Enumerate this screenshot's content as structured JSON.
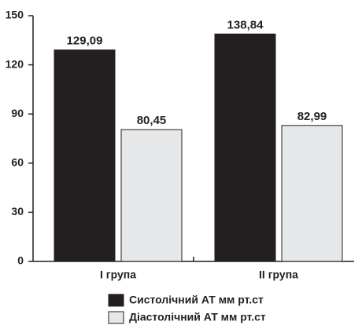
{
  "chart_data": {
    "type": "bar",
    "categories": [
      "I група",
      "II група"
    ],
    "series": [
      {
        "name": "Систолічний АТ мм рт.ст",
        "color": "#231f20",
        "values": [
          129.09,
          138.84
        ],
        "value_labels": [
          "129,09",
          "138,84"
        ]
      },
      {
        "name": "Діастолічний АТ мм рт.ст",
        "color": "#e6e7e8",
        "values": [
          80.45,
          82.99
        ],
        "value_labels": [
          "80,45",
          "82,99"
        ]
      }
    ],
    "ylim": [
      0,
      150
    ],
    "yticks": [
      0,
      30,
      60,
      90,
      120,
      150
    ],
    "grid": false,
    "legend": "bottom"
  }
}
